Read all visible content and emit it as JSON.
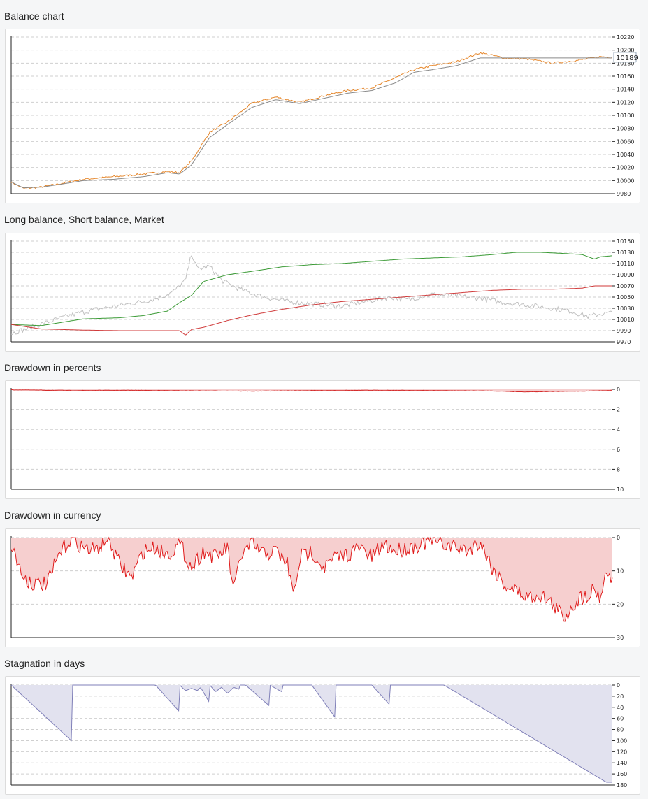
{
  "chart_data": [
    {
      "id": "balance",
      "type": "line",
      "title": "Balance chart",
      "ylim": [
        9980,
        10220
      ],
      "y_ticks": [
        "10220",
        "10200",
        "10180",
        "10160",
        "10140",
        "10120",
        "10100",
        "10080",
        "10060",
        "10040",
        "10020",
        "10000",
        "9980"
      ],
      "last_value_label": "10189",
      "series": [
        {
          "color": "#e5862a",
          "x": [
            0,
            0.02,
            0.05,
            0.08,
            0.12,
            0.17,
            0.22,
            0.26,
            0.28,
            0.3,
            0.33,
            0.36,
            0.4,
            0.44,
            0.48,
            0.52,
            0.56,
            0.6,
            0.64,
            0.67,
            0.7,
            0.74,
            0.78,
            0.82,
            0.86,
            0.9,
            0.94,
            0.98,
            1.0
          ],
          "y": [
            9998,
            9988,
            9990,
            9995,
            10002,
            10006,
            10010,
            10014,
            10012,
            10030,
            10074,
            10090,
            10118,
            10128,
            10120,
            10130,
            10138,
            10142,
            10158,
            10170,
            10176,
            10182,
            10196,
            10188,
            10186,
            10180,
            10184,
            10190,
            10189
          ]
        },
        {
          "color": "#8a8a8a",
          "x": [
            0,
            0.02,
            0.05,
            0.08,
            0.12,
            0.17,
            0.22,
            0.26,
            0.28,
            0.3,
            0.33,
            0.36,
            0.4,
            0.44,
            0.48,
            0.52,
            0.56,
            0.6,
            0.64,
            0.67,
            0.7,
            0.74,
            0.78,
            0.82,
            0.86,
            0.9,
            0.94,
            0.98,
            1.0
          ],
          "y": [
            9998,
            9989,
            9990,
            9994,
            10000,
            10002,
            10006,
            10012,
            10010,
            10024,
            10066,
            10086,
            10112,
            10124,
            10118,
            10126,
            10134,
            10138,
            10150,
            10166,
            10170,
            10176,
            10188,
            10188,
            10188,
            10188,
            10188,
            10188,
            10188
          ]
        }
      ]
    },
    {
      "id": "long_short",
      "type": "line",
      "title": "Long balance, Short balance, Market",
      "ylim": [
        9970,
        10150
      ],
      "y_ticks": [
        "10150",
        "10130",
        "10110",
        "10090",
        "10070",
        "10050",
        "10030",
        "10010",
        "9990",
        "9970"
      ],
      "series": [
        {
          "color": "#c0c0c0",
          "x": [
            0,
            0.03,
            0.06,
            0.1,
            0.14,
            0.18,
            0.22,
            0.25,
            0.27,
            0.29,
            0.3,
            0.31,
            0.33,
            0.35,
            0.38,
            0.42,
            0.46,
            0.5,
            0.55,
            0.6,
            0.63,
            0.66,
            0.7,
            0.74,
            0.78,
            0.82,
            0.86,
            0.9,
            0.93,
            0.96,
            0.98,
            1.0
          ],
          "y": [
            9985,
            9995,
            10005,
            10018,
            10028,
            10035,
            10042,
            10050,
            10060,
            10080,
            10128,
            10100,
            10105,
            10080,
            10064,
            10050,
            10042,
            10038,
            10034,
            10044,
            10050,
            10045,
            10055,
            10052,
            10048,
            10040,
            10036,
            10030,
            10025,
            10015,
            10020,
            10022
          ]
        },
        {
          "color": "#3a9a35",
          "x": [
            0,
            0.05,
            0.12,
            0.18,
            0.22,
            0.26,
            0.28,
            0.3,
            0.32,
            0.36,
            0.4,
            0.45,
            0.5,
            0.55,
            0.6,
            0.65,
            0.7,
            0.75,
            0.8,
            0.84,
            0.88,
            0.92,
            0.95,
            0.97,
            0.98,
            1.0
          ],
          "y": [
            10001,
            9999,
            10011,
            10013,
            10017,
            10025,
            10040,
            10053,
            10078,
            10090,
            10096,
            10104,
            10108,
            10110,
            10114,
            10118,
            10120,
            10122,
            10126,
            10130,
            10130,
            10128,
            10126,
            10118,
            10122,
            10124
          ]
        },
        {
          "color": "#d03a3a",
          "x": [
            0,
            0.05,
            0.12,
            0.18,
            0.22,
            0.26,
            0.28,
            0.29,
            0.3,
            0.32,
            0.36,
            0.4,
            0.45,
            0.5,
            0.55,
            0.6,
            0.65,
            0.7,
            0.75,
            0.8,
            0.85,
            0.9,
            0.95,
            0.97,
            1.0
          ],
          "y": [
            10001,
            9993,
            9991,
            9990,
            9990,
            9990,
            9990,
            9982,
            9992,
            9996,
            10008,
            10018,
            10028,
            10036,
            10042,
            10046,
            10050,
            10054,
            10058,
            10062,
            10064,
            10064,
            10066,
            10070,
            10070
          ]
        }
      ]
    },
    {
      "id": "dd_percent",
      "type": "area",
      "title": "Drawdown in percents",
      "ylim": [
        0,
        10
      ],
      "y_ticks": [
        "0",
        "2",
        "4",
        "6",
        "8",
        "10"
      ],
      "series": [
        {
          "color": "#d42a2a",
          "fill": "#f6cfcf",
          "x": [
            0,
            0.1,
            0.2,
            0.3,
            0.4,
            0.5,
            0.6,
            0.7,
            0.8,
            0.85,
            0.9,
            0.95,
            1.0
          ],
          "y": [
            0.05,
            0.12,
            0.1,
            0.14,
            0.18,
            0.12,
            0.1,
            0.12,
            0.16,
            0.25,
            0.22,
            0.18,
            0.1
          ]
        }
      ]
    },
    {
      "id": "dd_currency",
      "type": "area",
      "title": "Drawdown in currency",
      "ylim": [
        0,
        30
      ],
      "y_ticks": [
        "0",
        "10",
        "20",
        "30"
      ],
      "series": [
        {
          "color": "#e01b1b",
          "fill": "#f6cfcf",
          "x": [
            0,
            0.02,
            0.04,
            0.06,
            0.08,
            0.1,
            0.12,
            0.14,
            0.16,
            0.18,
            0.2,
            0.22,
            0.24,
            0.26,
            0.28,
            0.3,
            0.32,
            0.34,
            0.36,
            0.37,
            0.38,
            0.4,
            0.42,
            0.44,
            0.46,
            0.47,
            0.48,
            0.5,
            0.52,
            0.54,
            0.56,
            0.58,
            0.6,
            0.62,
            0.64,
            0.66,
            0.68,
            0.7,
            0.72,
            0.74,
            0.76,
            0.78,
            0.8,
            0.82,
            0.84,
            0.86,
            0.88,
            0.9,
            0.92,
            0.94,
            0.96,
            0.97,
            0.98,
            0.99,
            1.0
          ],
          "y": [
            2,
            12,
            14,
            14,
            5,
            0,
            3,
            4,
            0,
            8,
            12,
            4,
            3,
            5,
            2,
            9,
            4,
            6,
            3,
            17,
            6,
            2,
            5,
            4,
            8,
            18,
            6,
            4,
            9,
            6,
            5,
            3,
            6,
            2,
            4,
            3,
            2,
            1,
            2,
            3,
            4,
            1,
            9,
            14,
            16,
            18,
            17,
            20,
            24,
            19,
            17,
            15,
            18,
            10,
            12
          ]
        }
      ]
    },
    {
      "id": "stagnation",
      "type": "area",
      "title": "Stagnation in days",
      "ylim": [
        0,
        180
      ],
      "y_ticks": [
        "0",
        "20",
        "40",
        "60",
        "80",
        "100",
        "120",
        "140",
        "160",
        "180"
      ],
      "series": [
        {
          "color": "#7f7fb8",
          "fill": "#e2e2ef",
          "x": [
            0,
            0.0001,
            0.1,
            0.1001,
            0.24,
            0.28,
            0.2801,
            0.29,
            0.3,
            0.31,
            0.315,
            0.33,
            0.3301,
            0.34,
            0.35,
            0.36,
            0.37,
            0.38,
            0.3801,
            0.39,
            0.43,
            0.4301,
            0.45,
            0.4501,
            0.47,
            0.5,
            0.54,
            0.5401,
            0.58,
            0.6,
            0.63,
            0.6301,
            0.65,
            0.72,
            0.99,
            1.0
          ],
          "y": [
            0,
            0,
            100,
            0,
            0,
            48,
            0,
            10,
            6,
            10,
            4,
            32,
            0,
            12,
            4,
            15,
            4,
            8,
            0,
            0,
            38,
            0,
            12,
            0,
            0,
            0,
            60,
            0,
            0,
            0,
            36,
            0,
            0,
            0,
            175,
            175
          ]
        }
      ]
    }
  ]
}
